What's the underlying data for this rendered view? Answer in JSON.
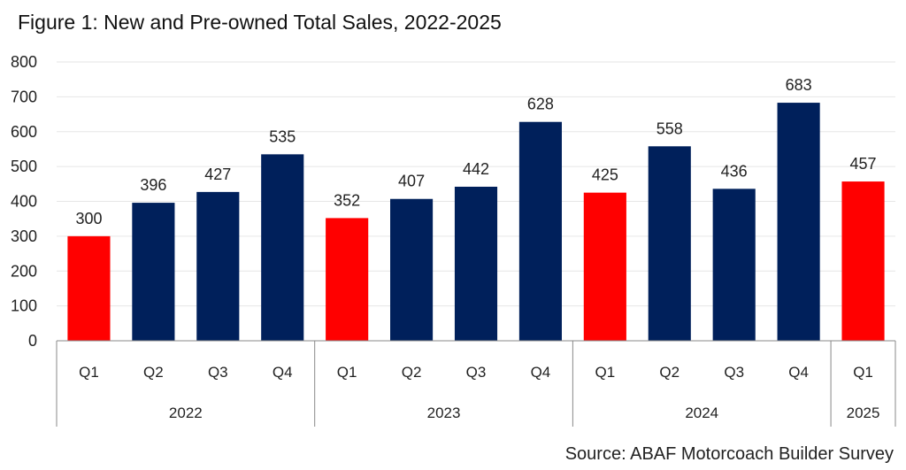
{
  "title": "Figure 1: New and Pre-owned Total Sales, 2022-2025",
  "source": "Source: ABAF Motorcoach Builder Survey",
  "colors": {
    "highlight": "#ff0000",
    "default": "#00205b",
    "gridline": "#e6e6e6",
    "axis": "#888888"
  },
  "chart_data": {
    "type": "bar",
    "title": "Figure 1: New and Pre-owned Total Sales, 2022-2025",
    "xlabel": "",
    "ylabel": "",
    "ylim": [
      0,
      800
    ],
    "yticks": [
      "0",
      "100",
      "200",
      "300",
      "400",
      "500",
      "600",
      "700",
      "800"
    ],
    "grid": true,
    "legend": "none",
    "categories": [
      "Q1",
      "Q2",
      "Q3",
      "Q4",
      "Q1",
      "Q2",
      "Q3",
      "Q4",
      "Q1",
      "Q2",
      "Q3",
      "Q4",
      "Q1"
    ],
    "groups": [
      {
        "label": "2022",
        "count": 4
      },
      {
        "label": "2023",
        "count": 4
      },
      {
        "label": "2024",
        "count": 4
      },
      {
        "label": "2025",
        "count": 1
      }
    ],
    "values": [
      300,
      396,
      427,
      535,
      352,
      407,
      442,
      628,
      425,
      558,
      436,
      683,
      457
    ],
    "highlight": [
      true,
      false,
      false,
      false,
      true,
      false,
      false,
      false,
      true,
      false,
      false,
      false,
      true
    ]
  }
}
